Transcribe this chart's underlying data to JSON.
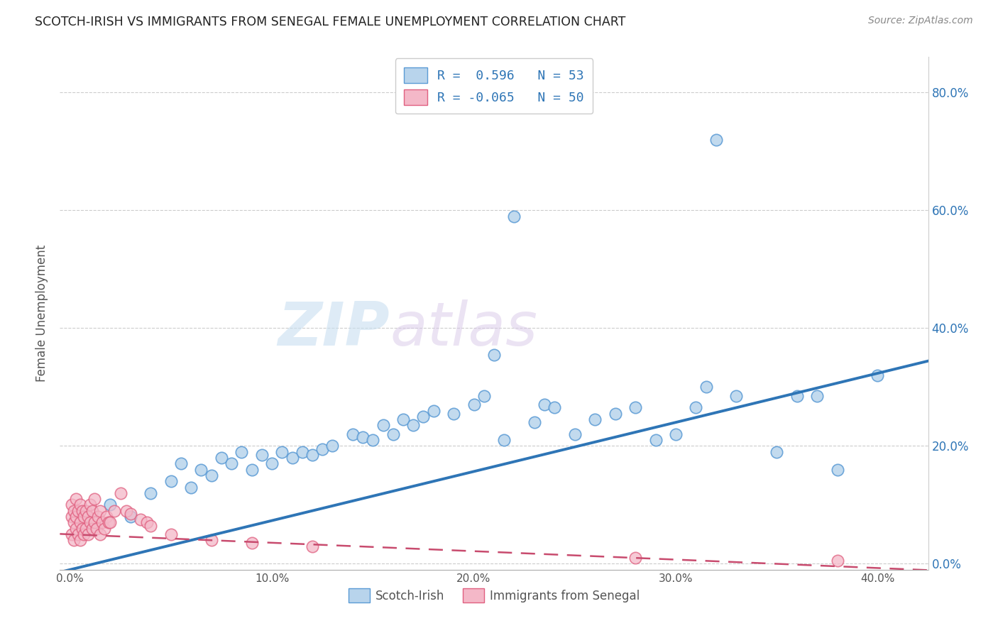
{
  "title": "SCOTCH-IRISH VS IMMIGRANTS FROM SENEGAL FEMALE UNEMPLOYMENT CORRELATION CHART",
  "source": "Source: ZipAtlas.com",
  "ylabel": "Female Unemployment",
  "x_tick_labels": [
    "0.0%",
    "10.0%",
    "20.0%",
    "30.0%",
    "40.0%"
  ],
  "x_tick_values": [
    0.0,
    0.1,
    0.2,
    0.3,
    0.4
  ],
  "y_tick_labels": [
    "0.0%",
    "20.0%",
    "40.0%",
    "60.0%",
    "80.0%"
  ],
  "y_tick_values": [
    0.0,
    0.2,
    0.4,
    0.6,
    0.8
  ],
  "xlim": [
    -0.005,
    0.425
  ],
  "ylim": [
    -0.01,
    0.86
  ],
  "R_blue": 0.596,
  "N_blue": 53,
  "R_pink": -0.065,
  "N_pink": 50,
  "blue_color": "#b8d4ec",
  "blue_edge_color": "#5b9bd5",
  "blue_line_color": "#2e75b6",
  "pink_color": "#f4b8c8",
  "pink_edge_color": "#e06080",
  "pink_line_color": "#c84b6e",
  "watermark_zip": "ZIP",
  "watermark_atlas": "atlas",
  "legend_label_blue": "Scotch-Irish",
  "legend_label_pink": "Immigrants from Senegal",
  "blue_scatter_x": [
    0.02,
    0.03,
    0.04,
    0.05,
    0.055,
    0.06,
    0.065,
    0.07,
    0.075,
    0.08,
    0.085,
    0.09,
    0.095,
    0.1,
    0.105,
    0.11,
    0.115,
    0.12,
    0.125,
    0.13,
    0.14,
    0.145,
    0.15,
    0.155,
    0.16,
    0.165,
    0.17,
    0.175,
    0.18,
    0.19,
    0.2,
    0.205,
    0.21,
    0.215,
    0.22,
    0.23,
    0.235,
    0.24,
    0.25,
    0.26,
    0.27,
    0.28,
    0.29,
    0.3,
    0.31,
    0.315,
    0.32,
    0.33,
    0.35,
    0.36,
    0.37,
    0.38,
    0.4
  ],
  "blue_scatter_y": [
    0.1,
    0.08,
    0.12,
    0.14,
    0.17,
    0.13,
    0.16,
    0.15,
    0.18,
    0.17,
    0.19,
    0.16,
    0.185,
    0.17,
    0.19,
    0.18,
    0.19,
    0.185,
    0.195,
    0.2,
    0.22,
    0.215,
    0.21,
    0.235,
    0.22,
    0.245,
    0.235,
    0.25,
    0.26,
    0.255,
    0.27,
    0.285,
    0.355,
    0.21,
    0.59,
    0.24,
    0.27,
    0.265,
    0.22,
    0.245,
    0.255,
    0.265,
    0.21,
    0.22,
    0.265,
    0.3,
    0.72,
    0.285,
    0.19,
    0.285,
    0.285,
    0.16,
    0.32
  ],
  "pink_scatter_x": [
    0.001,
    0.001,
    0.001,
    0.002,
    0.002,
    0.002,
    0.003,
    0.003,
    0.003,
    0.004,
    0.004,
    0.005,
    0.005,
    0.005,
    0.006,
    0.006,
    0.007,
    0.007,
    0.008,
    0.008,
    0.009,
    0.009,
    0.01,
    0.01,
    0.011,
    0.011,
    0.012,
    0.012,
    0.013,
    0.014,
    0.015,
    0.015,
    0.016,
    0.017,
    0.018,
    0.019,
    0.02,
    0.022,
    0.025,
    0.028,
    0.03,
    0.035,
    0.038,
    0.04,
    0.05,
    0.07,
    0.09,
    0.12,
    0.28,
    0.38
  ],
  "pink_scatter_y": [
    0.05,
    0.08,
    0.1,
    0.04,
    0.07,
    0.09,
    0.06,
    0.08,
    0.11,
    0.05,
    0.09,
    0.04,
    0.07,
    0.1,
    0.06,
    0.09,
    0.05,
    0.08,
    0.06,
    0.09,
    0.05,
    0.08,
    0.07,
    0.1,
    0.06,
    0.09,
    0.07,
    0.11,
    0.06,
    0.08,
    0.05,
    0.09,
    0.07,
    0.06,
    0.08,
    0.07,
    0.07,
    0.09,
    0.12,
    0.09,
    0.085,
    0.075,
    0.07,
    0.065,
    0.05,
    0.04,
    0.035,
    0.03,
    0.01,
    0.005
  ]
}
